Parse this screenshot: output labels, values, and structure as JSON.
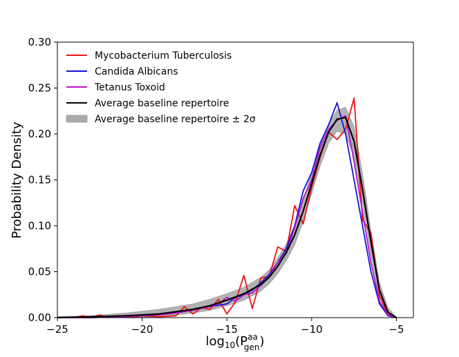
{
  "chart_data": {
    "type": "line",
    "title": "",
    "xlabel": "log10(Pgen^aa)",
    "xlabel_parts": {
      "base": "log",
      "base_sub": "10",
      "open": "(P",
      "sup": "aa",
      "sub": "gen",
      "close": ")"
    },
    "ylabel": "Probability Density",
    "xlim": [
      -25,
      -4
    ],
    "ylim": [
      0,
      0.3
    ],
    "x_ticks": [
      -25,
      -20,
      -15,
      -10,
      -5
    ],
    "x_tick_labels": [
      "−25",
      "−20",
      "−15",
      "−10",
      "−5"
    ],
    "y_ticks": [
      0,
      0.05,
      0.1,
      0.15,
      0.2,
      0.25,
      0.3
    ],
    "y_tick_labels": [
      "0.00",
      "0.05",
      "0.10",
      "0.15",
      "0.20",
      "0.25",
      "0.30"
    ],
    "legend_position": "top-left",
    "legend": [
      {
        "label": "Mycobacterium Tuberculosis",
        "color": "#ee1111",
        "kind": "line"
      },
      {
        "label": "Candida Albicans",
        "color": "#1111dd",
        "kind": "line"
      },
      {
        "label": "Tetanus Toxoid",
        "color": "#bb11cc",
        "kind": "line"
      },
      {
        "label": "Average baseline repertoire",
        "color": "#000000",
        "kind": "line"
      },
      {
        "label": "Average baseline repertoire ± 2σ",
        "color": "#aaaaaa",
        "kind": "band"
      }
    ],
    "band": {
      "name": "Average baseline repertoire ± 2σ",
      "color": "#aaaaaa",
      "x": [
        -25,
        -23,
        -21,
        -19,
        -17,
        -16,
        -15,
        -14,
        -13,
        -12.5,
        -12,
        -11.5,
        -11,
        -10.5,
        -10,
        -9.5,
        -9,
        -8.5,
        -8,
        -7.5,
        -7,
        -6.5,
        -6,
        -5.5,
        -5
      ],
      "lower": [
        0,
        0,
        0,
        0.001,
        0.005,
        0.008,
        0.013,
        0.019,
        0.029,
        0.037,
        0.048,
        0.062,
        0.079,
        0.105,
        0.135,
        0.165,
        0.19,
        0.203,
        0.2,
        0.175,
        0.125,
        0.068,
        0.022,
        0.003,
        0
      ],
      "upper": [
        0.001,
        0.002,
        0.005,
        0.009,
        0.015,
        0.02,
        0.026,
        0.033,
        0.044,
        0.052,
        0.065,
        0.08,
        0.1,
        0.127,
        0.158,
        0.187,
        0.211,
        0.226,
        0.229,
        0.208,
        0.157,
        0.094,
        0.038,
        0.011,
        0
      ]
    },
    "series": [
      {
        "name": "Mycobacterium Tuberculosis",
        "color": "#ee1111",
        "x": [
          -25,
          -24,
          -23.5,
          -23,
          -22.5,
          -22,
          -21,
          -20.5,
          -20,
          -19,
          -18,
          -17.5,
          -17,
          -16.5,
          -16,
          -15.5,
          -15,
          -14.5,
          -14,
          -13.5,
          -13,
          -12.5,
          -12,
          -11.5,
          -11,
          -10.5,
          -10,
          -9.5,
          -9,
          -8.5,
          -8,
          -7.5,
          -7,
          -6.5,
          -6,
          -5.5,
          -5
        ],
        "values": [
          0,
          0,
          0.002,
          0,
          0.003,
          0,
          0.002,
          0,
          0.002,
          0.001,
          0.002,
          0.012,
          0.004,
          0.011,
          0.009,
          0.02,
          0.004,
          0.017,
          0.046,
          0.01,
          0.043,
          0.045,
          0.077,
          0.072,
          0.122,
          0.102,
          0.142,
          0.175,
          0.202,
          0.194,
          0.205,
          0.239,
          0.106,
          0.092,
          0.024,
          0.004,
          0
        ]
      },
      {
        "name": "Candida Albicans",
        "color": "#1111dd",
        "x": [
          -25,
          -23,
          -21,
          -20,
          -19,
          -18,
          -17,
          -16,
          -15,
          -14.5,
          -14,
          -13.5,
          -13,
          -12.5,
          -12,
          -11.5,
          -11,
          -10.5,
          -10,
          -9.5,
          -9,
          -8.5,
          -8,
          -7.5,
          -7,
          -6.5,
          -6,
          -5.5,
          -5
        ],
        "values": [
          0,
          0,
          0.002,
          0.002,
          0.003,
          0.006,
          0.009,
          0.012,
          0.015,
          0.022,
          0.025,
          0.03,
          0.038,
          0.047,
          0.06,
          0.075,
          0.1,
          0.138,
          0.158,
          0.19,
          0.21,
          0.234,
          0.2,
          0.15,
          0.1,
          0.05,
          0.015,
          0.002,
          0
        ]
      },
      {
        "name": "Tetanus Toxoid",
        "color": "#bb11cc",
        "x": [
          -25,
          -23,
          -21,
          -20,
          -19,
          -18,
          -17,
          -16,
          -15.5,
          -15,
          -14.5,
          -14,
          -13.5,
          -13,
          -12.5,
          -12,
          -11.5,
          -11,
          -10.5,
          -10,
          -9.5,
          -9,
          -8.5,
          -8,
          -7.5,
          -7,
          -6.5,
          -6,
          -5.5,
          -5
        ],
        "values": [
          0,
          0,
          0.001,
          0.002,
          0.003,
          0.005,
          0.008,
          0.012,
          0.015,
          0.022,
          0.018,
          0.025,
          0.027,
          0.035,
          0.045,
          0.06,
          0.07,
          0.098,
          0.13,
          0.15,
          0.185,
          0.205,
          0.215,
          0.22,
          0.17,
          0.115,
          0.06,
          0.018,
          0.003,
          0
        ]
      },
      {
        "name": "Average baseline repertoire",
        "color": "#000000",
        "x": [
          -25,
          -23,
          -21,
          -19,
          -17,
          -16,
          -15,
          -14,
          -13,
          -12.5,
          -12,
          -11.5,
          -11,
          -10.5,
          -10,
          -9.5,
          -9,
          -8.5,
          -8,
          -7.5,
          -7,
          -6.5,
          -6,
          -5.5,
          -5
        ],
        "values": [
          0,
          0.001,
          0.002,
          0.004,
          0.009,
          0.013,
          0.019,
          0.026,
          0.036,
          0.044,
          0.056,
          0.071,
          0.09,
          0.116,
          0.146,
          0.177,
          0.202,
          0.216,
          0.218,
          0.192,
          0.14,
          0.082,
          0.03,
          0.006,
          0
        ]
      }
    ]
  }
}
